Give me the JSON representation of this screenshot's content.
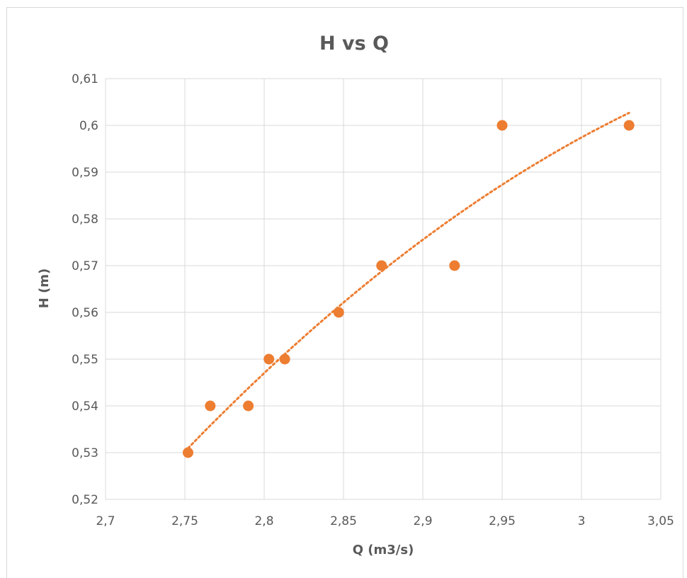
{
  "chart_data": {
    "type": "scatter",
    "title": "H vs Q",
    "xlabel": "Q (m3/s)",
    "ylabel": "H (m)",
    "xlim": [
      2.7,
      3.05
    ],
    "ylim": [
      0.52,
      0.61
    ],
    "x_ticks": [
      2.7,
      2.75,
      2.8,
      2.85,
      2.9,
      2.95,
      3.0,
      3.05
    ],
    "y_ticks": [
      0.52,
      0.53,
      0.54,
      0.55,
      0.56,
      0.57,
      0.58,
      0.59,
      0.6,
      0.61
    ],
    "x_tick_labels": [
      "2,7",
      "2,75",
      "2,8",
      "2,85",
      "2,9",
      "2,95",
      "3",
      "3,05"
    ],
    "y_tick_labels": [
      "0,52",
      "0,53",
      "0,54",
      "0,55",
      "0,56",
      "0,57",
      "0,58",
      "0,59",
      "0,6",
      "0,61"
    ],
    "grid": true,
    "legend": "none",
    "marker_color": "#ED7D31",
    "trendline": {
      "type": "polynomial",
      "style": "dotted",
      "color": "#ED7D31"
    },
    "series": [
      {
        "points": [
          {
            "x": 2.752,
            "y": 0.53
          },
          {
            "x": 2.766,
            "y": 0.54
          },
          {
            "x": 2.79,
            "y": 0.54
          },
          {
            "x": 2.803,
            "y": 0.55
          },
          {
            "x": 2.813,
            "y": 0.55
          },
          {
            "x": 2.847,
            "y": 0.56
          },
          {
            "x": 2.874,
            "y": 0.57
          },
          {
            "x": 2.92,
            "y": 0.57
          },
          {
            "x": 2.95,
            "y": 0.6
          },
          {
            "x": 3.03,
            "y": 0.6
          }
        ]
      }
    ]
  }
}
